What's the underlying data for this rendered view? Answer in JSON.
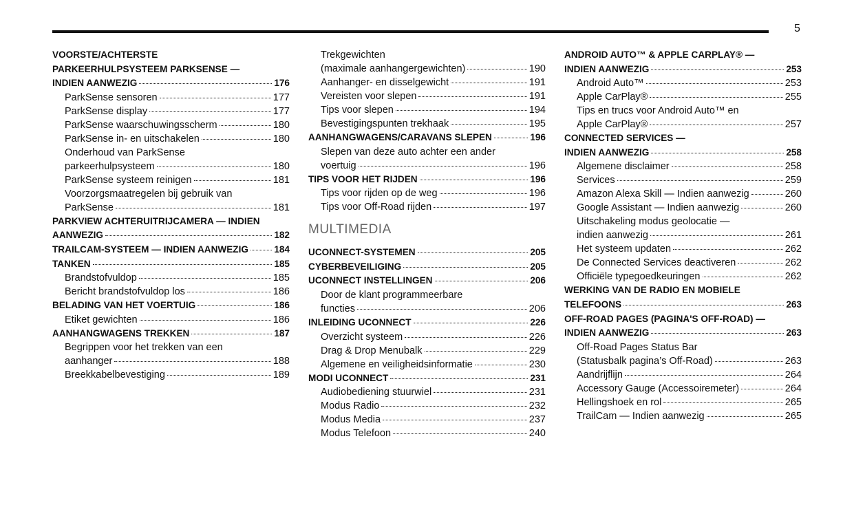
{
  "page_number": "5",
  "columns": [
    {
      "entries": [
        {
          "style": "main",
          "lines": [
            "VOORSTE/ACHTERSTE",
            "PARKEERHULPSYSTEEM PARKSENSE —",
            "INDIEN AANWEZIG"
          ],
          "page": 176
        },
        {
          "style": "sub",
          "lines": [
            "ParkSense sensoren"
          ],
          "page": 177
        },
        {
          "style": "sub",
          "lines": [
            "ParkSense display"
          ],
          "page": 177
        },
        {
          "style": "sub",
          "lines": [
            "ParkSense waarschuwingsscherm"
          ],
          "page": 180
        },
        {
          "style": "sub",
          "lines": [
            "ParkSense in- en uitschakelen"
          ],
          "page": 180
        },
        {
          "style": "sub",
          "lines": [
            "Onderhoud van ParkSense",
            "parkeerhulpsysteem"
          ],
          "page": 180
        },
        {
          "style": "sub",
          "lines": [
            "ParkSense systeem reinigen"
          ],
          "page": 181
        },
        {
          "style": "sub",
          "lines": [
            "Voorzorgsmaatregelen bij gebruik van",
            "ParkSense"
          ],
          "page": 181
        },
        {
          "style": "main",
          "lines": [
            "PARKVIEW ACHTERUITRIJCAMERA — INDIEN",
            "AANWEZIG"
          ],
          "page": 182
        },
        {
          "style": "main",
          "lines": [
            "TRAILCAM-SYSTEEM — INDIEN AANWEZIG"
          ],
          "page": 184
        },
        {
          "style": "main",
          "lines": [
            "TANKEN"
          ],
          "page": 185
        },
        {
          "style": "sub",
          "lines": [
            "Brandstofvuldop"
          ],
          "page": 185
        },
        {
          "style": "sub",
          "lines": [
            "Bericht brandstofvuldop los"
          ],
          "page": 186
        },
        {
          "style": "main",
          "lines": [
            "BELADING VAN HET VOERTUIG"
          ],
          "page": 186
        },
        {
          "style": "sub",
          "lines": [
            "Etiket gewichten"
          ],
          "page": 186
        },
        {
          "style": "main",
          "lines": [
            "AANHANGWAGENS TREKKEN"
          ],
          "page": 187
        },
        {
          "style": "sub",
          "lines": [
            "Begrippen voor het trekken van een",
            "aanhanger"
          ],
          "page": 188
        },
        {
          "style": "sub",
          "lines": [
            "Breekkabelbevestiging"
          ],
          "page": 189
        }
      ]
    },
    {
      "entries": [
        {
          "style": "sub",
          "lines": [
            "Trekgewichten",
            "(maximale aanhangergewichten)"
          ],
          "page": 190
        },
        {
          "style": "sub",
          "lines": [
            "Aanhanger- en disselgewicht"
          ],
          "page": 191
        },
        {
          "style": "sub",
          "lines": [
            "Vereisten voor slepen"
          ],
          "page": 191
        },
        {
          "style": "sub",
          "lines": [
            "Tips voor slepen"
          ],
          "page": 194
        },
        {
          "style": "sub",
          "lines": [
            "Bevestigingspunten trekhaak"
          ],
          "page": 195
        },
        {
          "style": "main",
          "lines": [
            "AANHANGWAGENS/CARAVANS SLEPEN"
          ],
          "page": 196
        },
        {
          "style": "sub",
          "lines": [
            "Slepen van deze auto achter een ander",
            "voertuig"
          ],
          "page": 196
        },
        {
          "style": "main",
          "lines": [
            "TIPS VOOR HET RIJDEN"
          ],
          "page": 196
        },
        {
          "style": "sub",
          "lines": [
            "Tips voor rijden op de weg"
          ],
          "page": 196
        },
        {
          "style": "sub",
          "lines": [
            "Tips voor Off-Road rijden"
          ],
          "page": 197
        },
        {
          "style": "heading",
          "lines": [
            "MULTIMEDIA"
          ]
        },
        {
          "style": "main",
          "lines": [
            "UCONNECT-SYSTEMEN"
          ],
          "page": 205
        },
        {
          "style": "main",
          "lines": [
            "CYBERBEVEILIGING"
          ],
          "page": 205
        },
        {
          "style": "main",
          "lines": [
            "UCONNECT INSTELLINGEN"
          ],
          "page": 206
        },
        {
          "style": "sub",
          "lines": [
            "Door de klant programmeerbare",
            "functies"
          ],
          "page": 206
        },
        {
          "style": "main",
          "lines": [
            "INLEIDING UCONNECT"
          ],
          "page": 226
        },
        {
          "style": "sub",
          "lines": [
            "Overzicht systeem"
          ],
          "page": 226
        },
        {
          "style": "sub",
          "lines": [
            "Drag & Drop Menubalk"
          ],
          "page": 229
        },
        {
          "style": "sub",
          "lines": [
            "Algemene en veiligheidsinformatie"
          ],
          "page": 230
        },
        {
          "style": "main",
          "lines": [
            "MODI UCONNECT"
          ],
          "page": 231
        },
        {
          "style": "sub",
          "lines": [
            "Audiobediening stuurwiel"
          ],
          "page": 231
        },
        {
          "style": "sub",
          "lines": [
            "Modus Radio"
          ],
          "page": 232
        },
        {
          "style": "sub",
          "lines": [
            "Modus Media"
          ],
          "page": 237
        },
        {
          "style": "sub",
          "lines": [
            "Modus Telefoon"
          ],
          "page": 240
        }
      ]
    },
    {
      "entries": [
        {
          "style": "main",
          "lines": [
            "ANDROID AUTO™ & APPLE CARPLAY® —",
            "INDIEN AANWEZIG"
          ],
          "page": 253
        },
        {
          "style": "sub",
          "lines": [
            "Android Auto™"
          ],
          "page": 253
        },
        {
          "style": "sub",
          "lines": [
            "Apple CarPlay®"
          ],
          "page": 255
        },
        {
          "style": "sub",
          "lines": [
            "Tips en trucs voor Android Auto™ en",
            "Apple CarPlay®"
          ],
          "page": 257
        },
        {
          "style": "main",
          "lines": [
            "CONNECTED SERVICES —",
            "INDIEN AANWEZIG"
          ],
          "page": 258
        },
        {
          "style": "sub",
          "lines": [
            "Algemene disclaimer"
          ],
          "page": 258
        },
        {
          "style": "sub",
          "lines": [
            "Services"
          ],
          "page": 259
        },
        {
          "style": "sub",
          "lines": [
            "Amazon Alexa Skill — Indien aanwezig"
          ],
          "page": 260
        },
        {
          "style": "sub",
          "lines": [
            "Google Assistant — Indien aanwezig"
          ],
          "page": 260
        },
        {
          "style": "sub",
          "lines": [
            "Uitschakeling modus geolocatie —",
            "indien aanwezig"
          ],
          "page": 261
        },
        {
          "style": "sub",
          "lines": [
            "Het systeem updaten"
          ],
          "page": 262
        },
        {
          "style": "sub",
          "lines": [
            "De Connected Services deactiveren"
          ],
          "page": 262
        },
        {
          "style": "sub",
          "lines": [
            "Officiële typegoedkeuringen"
          ],
          "page": 262
        },
        {
          "style": "main",
          "lines": [
            "WERKING VAN DE RADIO EN MOBIELE",
            "TELEFOONS"
          ],
          "page": 263
        },
        {
          "style": "main",
          "lines": [
            "OFF-ROAD PAGES (PAGINA'S OFF-ROAD) —",
            "INDIEN AANWEZIG"
          ],
          "page": 263
        },
        {
          "style": "sub",
          "lines": [
            "Off-Road Pages Status Bar",
            "(Statusbalk pagina’s Off-Road)"
          ],
          "page": 263
        },
        {
          "style": "sub",
          "lines": [
            "Aandrijflijn"
          ],
          "page": 264
        },
        {
          "style": "sub",
          "lines": [
            "Accessory Gauge (Accessoiremeter)"
          ],
          "page": 264
        },
        {
          "style": "sub",
          "lines": [
            "Hellingshoek en rol"
          ],
          "page": 265
        },
        {
          "style": "sub",
          "lines": [
            "TrailCam — Indien aanwezig"
          ],
          "page": 265
        }
      ]
    }
  ]
}
